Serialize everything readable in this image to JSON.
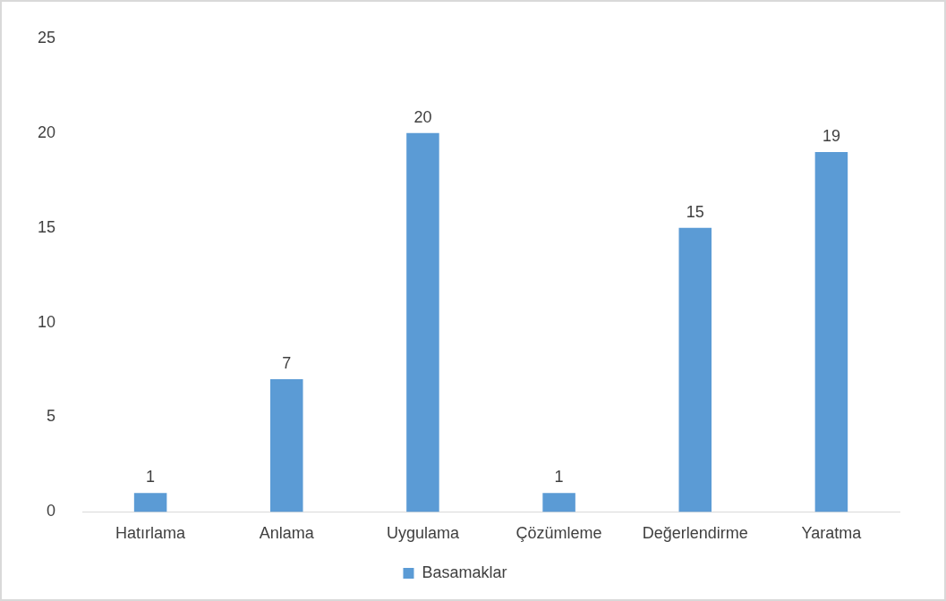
{
  "chart_data": {
    "type": "bar",
    "categories": [
      "Hatırlama",
      "Anlama",
      "Uygulama",
      "Çözümleme",
      "Değerlendirme",
      "Yaratma"
    ],
    "series": [
      {
        "name": "Basamaklar",
        "color": "#5b9bd5",
        "values": [
          1,
          7,
          20,
          1,
          15,
          19
        ]
      }
    ],
    "ylim": [
      0,
      25
    ],
    "yticks": [
      0,
      5,
      10,
      15,
      20,
      25
    ],
    "grid": false,
    "legend": "bottom",
    "data_labels": true
  }
}
